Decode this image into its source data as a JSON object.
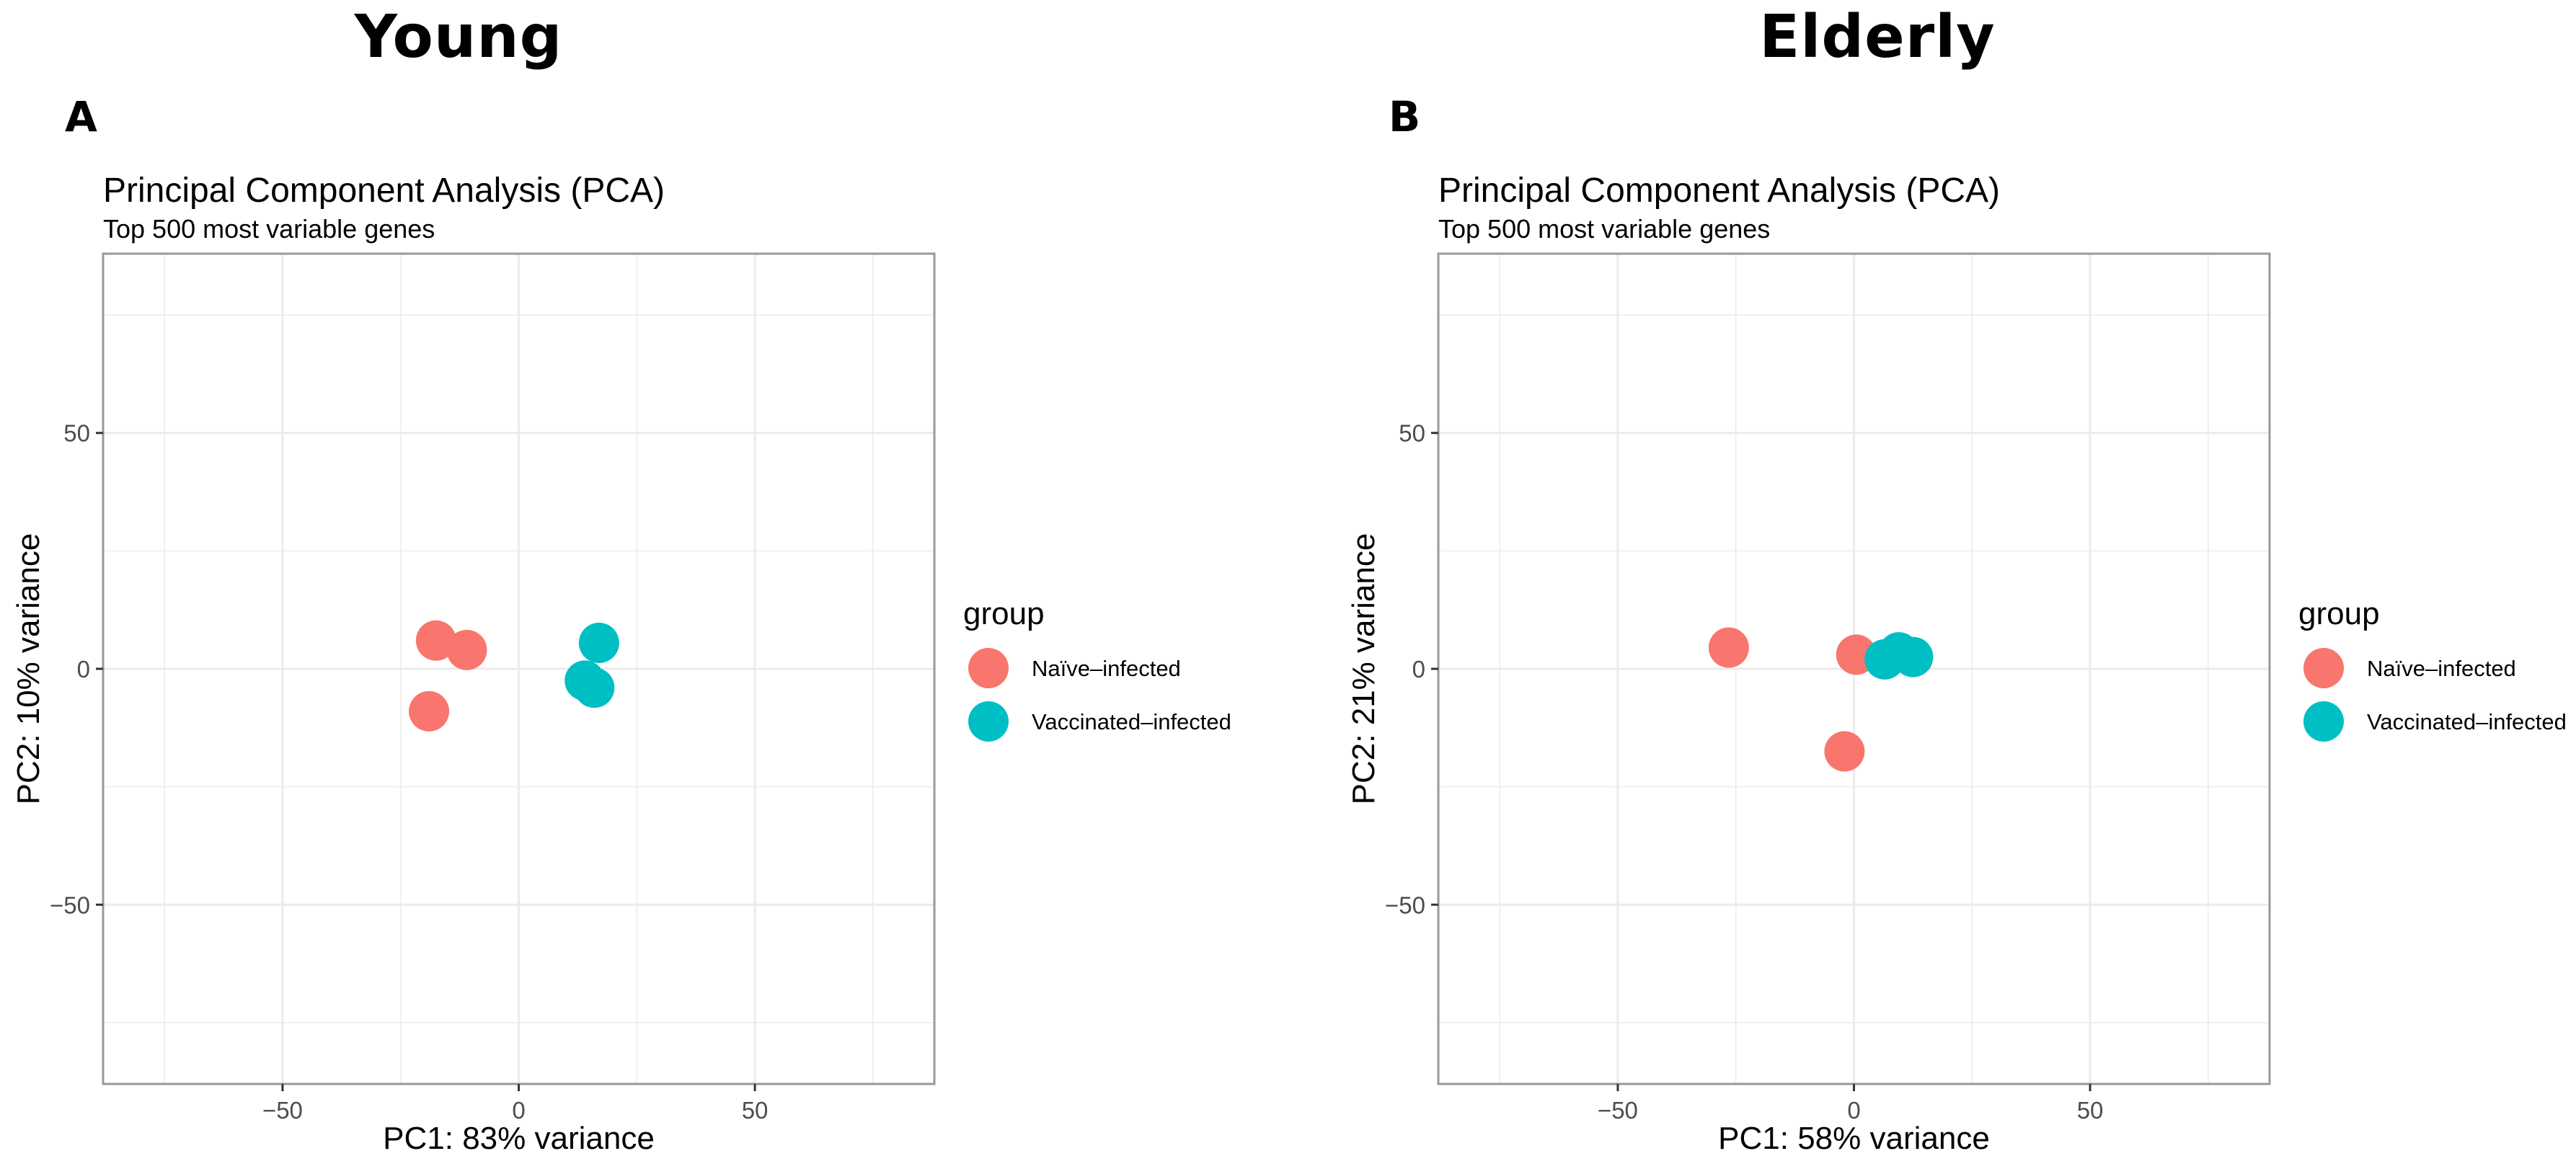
{
  "headers": {
    "left": "Young",
    "right": "Elderly"
  },
  "panels": [
    {
      "letter": "A"
    },
    {
      "letter": "B"
    }
  ],
  "colors": {
    "naive": "#F8766D",
    "vaccinated": "#00BFC4",
    "grid": "#EBEBEB",
    "border": "#999999",
    "tick_text": "#4D4D4D"
  },
  "chart_data": [
    {
      "type": "scatter",
      "panel": "A",
      "title": "Principal Component Analysis (PCA)",
      "subtitle": "Top 500 most variable genes",
      "xlabel": "PC1: 83% variance",
      "ylabel": "PC2: 10% variance",
      "xlim": [
        -88,
        88
      ],
      "ylim": [
        -88,
        88
      ],
      "x_ticks": [
        -50,
        0,
        50
      ],
      "y_ticks": [
        50,
        0,
        -50
      ],
      "x_tick_labels": [
        "−50",
        "0",
        "50"
      ],
      "y_tick_labels": [
        "50",
        "0",
        "−50"
      ],
      "legend_title": "group",
      "legend": [
        "Naïve–infected",
        "Vaccinated–infected"
      ],
      "series": [
        {
          "name": "Naïve–infected",
          "color": "#F8766D",
          "points": [
            [
              -17.5,
              6
            ],
            [
              -11,
              4
            ],
            [
              -19,
              -9
            ]
          ]
        },
        {
          "name": "Vaccinated–infected",
          "color": "#00BFC4",
          "points": [
            [
              17,
              5.5
            ],
            [
              14,
              -2.5
            ],
            [
              16,
              -4
            ]
          ]
        }
      ]
    },
    {
      "type": "scatter",
      "panel": "B",
      "title": "Principal Component Analysis (PCA)",
      "subtitle": "Top 500 most variable genes",
      "xlabel": "PC1: 58% variance",
      "ylabel": "PC2: 21% variance",
      "xlim": [
        -88,
        88
      ],
      "ylim": [
        -88,
        88
      ],
      "x_ticks": [
        -50,
        0,
        50
      ],
      "y_ticks": [
        50,
        0,
        -50
      ],
      "x_tick_labels": [
        "−50",
        "0",
        "50"
      ],
      "y_tick_labels": [
        "50",
        "0",
        "−50"
      ],
      "legend_title": "group",
      "legend": [
        "Naïve–infected",
        "Vaccinated–infected"
      ],
      "series": [
        {
          "name": "Naïve–infected",
          "color": "#F8766D",
          "points": [
            [
              -26.5,
              4.5
            ],
            [
              0.5,
              3
            ],
            [
              -2,
              -17.5
            ]
          ]
        },
        {
          "name": "Vaccinated–infected",
          "color": "#00BFC4",
          "points": [
            [
              6.5,
              2
            ],
            [
              9.5,
              3.5
            ],
            [
              12.5,
              2.5
            ]
          ]
        }
      ]
    }
  ]
}
